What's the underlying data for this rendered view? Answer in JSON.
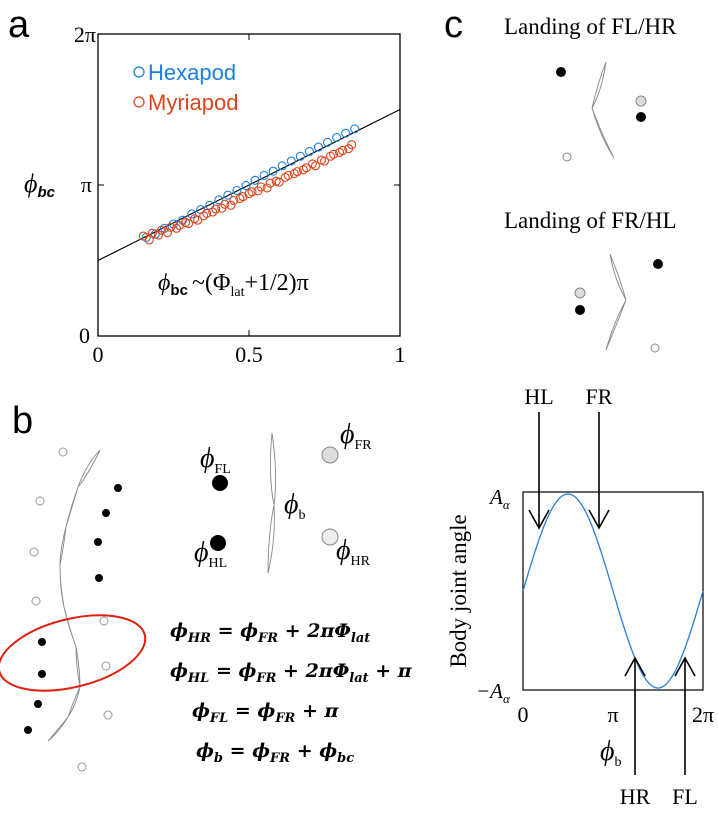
{
  "panels": {
    "a": "a",
    "b": "b",
    "c": "c"
  },
  "panel_a": {
    "ylabel_symbol": "ϕ",
    "ylabel_sub": "bc",
    "y_ticks": [
      "0",
      "π",
      "2π"
    ],
    "x_ticks": [
      "0",
      "0.5",
      "1"
    ],
    "annotation": {
      "symbol": "ϕ",
      "sub": "bc",
      "tilde": "~(Φ",
      "lat_sub": "lat",
      "tail": "+1/2)π"
    },
    "legend": [
      {
        "label": "Hexapod",
        "color": "#1e7fe0"
      },
      {
        "label": "Myriapod",
        "color": "#e0441a"
      }
    ]
  },
  "chart_data": {
    "type": "scatter",
    "xlim": [
      0,
      1
    ],
    "ylim": [
      0,
      6.2832
    ],
    "x_ticks": [
      "0",
      "0.5",
      "1"
    ],
    "y_ticks": [
      "0",
      "π",
      "2π"
    ],
    "series": [
      {
        "name": "Hexapod",
        "color": "#1e7fe0",
        "x": [
          0.16,
          0.19,
          0.22,
          0.25,
          0.28,
          0.31,
          0.34,
          0.37,
          0.4,
          0.43,
          0.46,
          0.49,
          0.52,
          0.55,
          0.58,
          0.61,
          0.64,
          0.67,
          0.7,
          0.73,
          0.76,
          0.79,
          0.82,
          0.85
        ],
        "y": [
          2.05,
          2.12,
          2.24,
          2.33,
          2.41,
          2.54,
          2.63,
          2.72,
          2.83,
          2.93,
          3.03,
          3.13,
          3.24,
          3.34,
          3.43,
          3.54,
          3.64,
          3.74,
          3.84,
          3.93,
          4.03,
          4.13,
          4.22,
          4.31
        ]
      },
      {
        "name": "Myriapod",
        "color": "#e0441a",
        "x": [
          0.15,
          0.17,
          0.18,
          0.2,
          0.21,
          0.23,
          0.24,
          0.26,
          0.27,
          0.29,
          0.3,
          0.32,
          0.33,
          0.35,
          0.36,
          0.38,
          0.39,
          0.41,
          0.42,
          0.44,
          0.45,
          0.47,
          0.48,
          0.5,
          0.51,
          0.53,
          0.54,
          0.56,
          0.57,
          0.59,
          0.6,
          0.62,
          0.63,
          0.65,
          0.66,
          0.68,
          0.69,
          0.71,
          0.72,
          0.74,
          0.75,
          0.77,
          0.78,
          0.8,
          0.81,
          0.83,
          0.84
        ],
        "y": [
          2.08,
          2.0,
          2.14,
          2.1,
          2.2,
          2.15,
          2.26,
          2.24,
          2.3,
          2.36,
          2.34,
          2.44,
          2.41,
          2.5,
          2.55,
          2.58,
          2.64,
          2.66,
          2.74,
          2.72,
          2.82,
          2.86,
          2.9,
          2.96,
          3.0,
          3.02,
          3.1,
          3.08,
          3.18,
          3.22,
          3.2,
          3.3,
          3.34,
          3.38,
          3.42,
          3.46,
          3.5,
          3.58,
          3.54,
          3.66,
          3.64,
          3.74,
          3.78,
          3.82,
          3.86,
          3.9,
          3.98
        ]
      }
    ],
    "fit_line": {
      "label": "ϕbc ~(Φlat+1/2)π",
      "x": [
        0,
        1
      ],
      "y": [
        1.5708,
        4.7124
      ]
    }
  },
  "panel_b": {
    "labels": {
      "phi": "ϕ",
      "FL": "FL",
      "HL": "HL",
      "FR": "FR",
      "HR": "HR",
      "b": "b"
    },
    "equations": [
      {
        "lhs": "HR",
        "rhs": "= ϕ",
        "rhs_sub": "FR",
        "tail": " + 2πΦ",
        "tail_sub": "lat",
        "end": ""
      },
      {
        "lhs": "HL",
        "rhs": "= ϕ",
        "rhs_sub": "FR",
        "tail": " + 2πΦ",
        "tail_sub": "lat",
        "end": " + π"
      },
      {
        "lhs": "FL",
        "rhs": "= ϕ",
        "rhs_sub": "FR",
        "tail": " + π",
        "tail_sub": "",
        "end": ""
      },
      {
        "lhs": "b",
        "rhs": "= ϕ",
        "rhs_sub": "FR",
        "tail": " + ϕ",
        "tail_sub": "bc",
        "end": ""
      }
    ]
  },
  "panel_c": {
    "landing1": "Landing of FL/HR",
    "landing2": "Landing of FR/HL",
    "ylabel": "Body joint angle",
    "y_top": "A",
    "y_bottom": "−A",
    "y_sub": "α",
    "x_ticks": [
      "0",
      "π",
      "2π"
    ],
    "xlabel_symbol": "ϕ",
    "xlabel_sub": "b",
    "arrows_top": [
      "HL",
      "FR"
    ],
    "arrows_bottom": [
      "HR",
      "FL"
    ],
    "curve_color": "#2a7fd4"
  }
}
